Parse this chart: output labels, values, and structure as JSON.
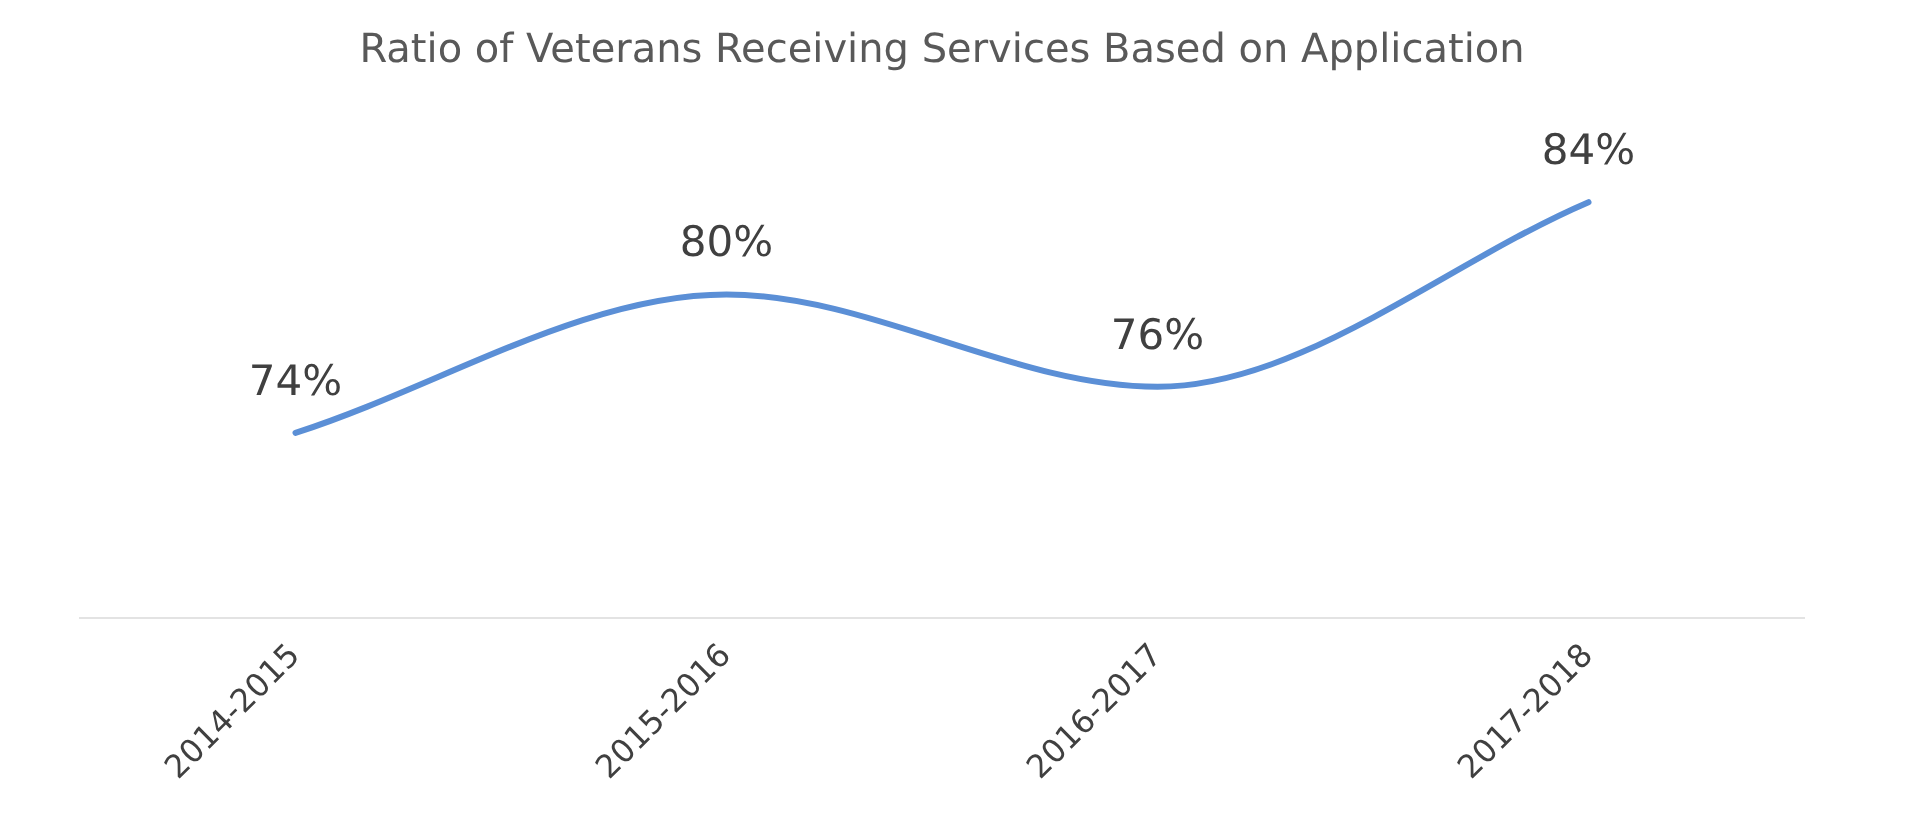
{
  "chart_data": {
    "type": "line",
    "title": "Ratio of Veterans Receiving Services Based on Application",
    "categories": [
      "2014-2015",
      "2015-2016",
      "2016-2017",
      "2017-2018"
    ],
    "series": [
      {
        "color": "#5b8fd6",
        "values": [
          74,
          80,
          76,
          84
        ],
        "value_labels": [
          "74%",
          "80%",
          "76%",
          "84%"
        ]
      }
    ],
    "tick_labels": "x",
    "legend": false,
    "grid": false,
    "marker": "none",
    "line_style": "solid"
  }
}
